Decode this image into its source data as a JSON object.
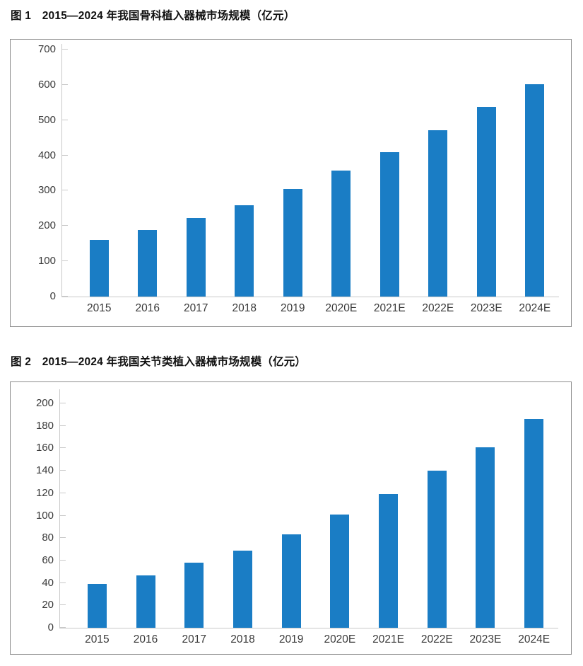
{
  "page": {
    "background": "#ffffff",
    "text_color": "#1a1a1a"
  },
  "figures": [
    {
      "label": "图 1",
      "title": "图 1　2015—2024 年我国骨科植入器械市场规模（亿元）"
    },
    {
      "label": "图 2",
      "title": "图 2　2015—2024 年我国关节类植入器械市场规模（亿元）"
    }
  ],
  "chart_data": [
    {
      "type": "bar",
      "title": "图 1　2015—2024 年我国骨科植入器械市场规模（亿元）",
      "categories": [
        "2015",
        "2016",
        "2017",
        "2018",
        "2019",
        "2020E",
        "2021E",
        "2022E",
        "2023E",
        "2024E"
      ],
      "values": [
        161,
        189,
        222,
        258,
        304,
        357,
        410,
        472,
        538,
        602
      ],
      "xlabel": "",
      "ylabel": "",
      "ylim": [
        0,
        700
      ],
      "ytick_step": 100,
      "grid": false,
      "legend": false,
      "bar_color": "#1a7dc5",
      "axis_color": "#c9c9c9",
      "frame_border_color": "#8d8d8d",
      "tick_label_color": "#3a3a3a"
    },
    {
      "type": "bar",
      "title": "图 2　2015—2024 年我国关节类植入器械市场规模（亿元）",
      "categories": [
        "2015",
        "2016",
        "2017",
        "2018",
        "2019",
        "2020E",
        "2021E",
        "2022E",
        "2023E",
        "2024E"
      ],
      "values": [
        39,
        47,
        58,
        69,
        83,
        101,
        119,
        140,
        161,
        186
      ],
      "xlabel": "",
      "ylabel": "",
      "ylim": [
        0,
        200
      ],
      "ytick_step": 20,
      "grid": false,
      "legend": false,
      "bar_color": "#1a7dc5",
      "axis_color": "#c9c9c9",
      "frame_border_color": "#8d8d8d",
      "tick_label_color": "#3a3a3a"
    }
  ]
}
